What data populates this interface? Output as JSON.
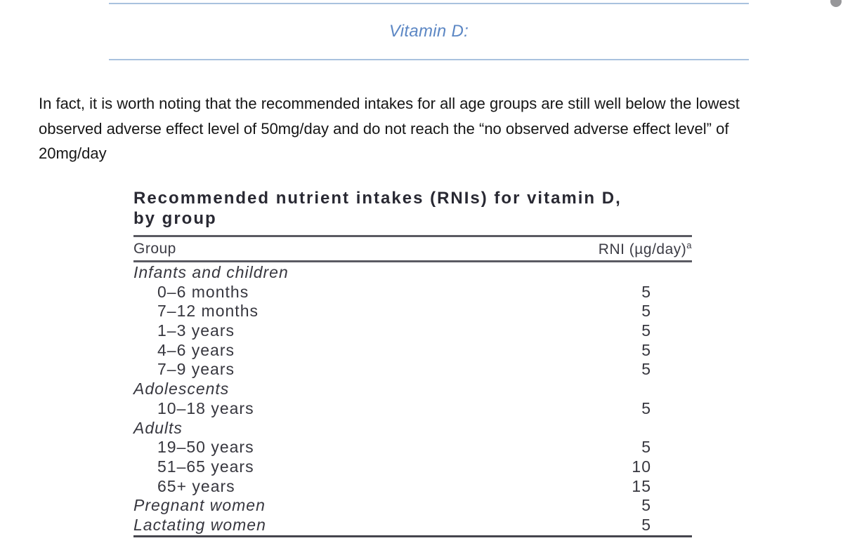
{
  "section": {
    "heading": "Vitamin D:"
  },
  "paragraph": {
    "lines": [
      "In fact, it is worth noting that the recommended intakes for all age groups are still well below the lowest",
      "observed adverse effect level of 50mg/day and do not reach the “no observed adverse effect level” of",
      "20mg/day"
    ]
  },
  "table": {
    "title_line1": "Recommended nutrient intakes (RNIs) for vitamin D,",
    "title_line2": "by group",
    "columns": {
      "group": "Group",
      "rni": "RNI (µg/day)",
      "rni_superscript": "a"
    },
    "rows": [
      {
        "label": "Infants and children",
        "value": "",
        "type": "category"
      },
      {
        "label": "0–6 months",
        "value": "5",
        "type": "sub"
      },
      {
        "label": "7–12 months",
        "value": "5",
        "type": "sub"
      },
      {
        "label": "1–3 years",
        "value": "5",
        "type": "sub"
      },
      {
        "label": "4–6 years",
        "value": "5",
        "type": "sub"
      },
      {
        "label": "7–9 years",
        "value": "5",
        "type": "sub"
      },
      {
        "label": "Adolescents",
        "value": "",
        "type": "category"
      },
      {
        "label": "10–18 years",
        "value": "5",
        "type": "sub"
      },
      {
        "label": "Adults",
        "value": "",
        "type": "category"
      },
      {
        "label": "19–50 years",
        "value": "5",
        "type": "sub"
      },
      {
        "label": "51–65 years",
        "value": "10",
        "type": "sub"
      },
      {
        "label": "65+ years",
        "value": "15",
        "type": "sub"
      },
      {
        "label": "Pregnant women",
        "value": "5",
        "type": "category"
      },
      {
        "label": "Lactating women",
        "value": "5",
        "type": "category"
      }
    ]
  },
  "colors": {
    "accent_blue_text": "#5c87c4",
    "accent_blue_line": "#a9c2de",
    "table_title_text": "#292933",
    "table_body_text": "#37373f",
    "table_rule": "#5a5a62",
    "body_text": "#161616"
  }
}
